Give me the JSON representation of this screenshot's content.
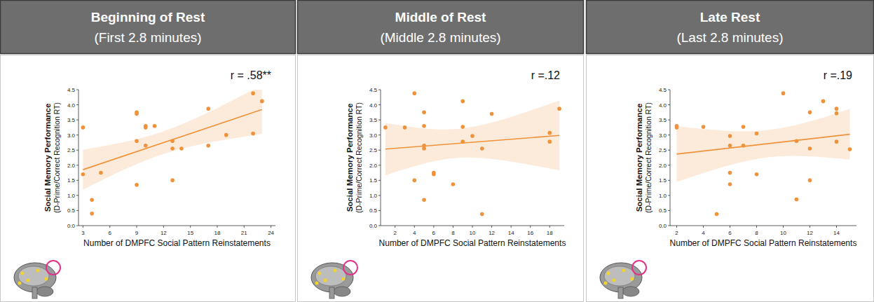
{
  "chart_data": [
    {
      "type": "scatter",
      "title": "Beginning of Rest",
      "subtitle": "(First 2.8 minutes)",
      "annotation": "r = .58**",
      "xlabel": "Number of DMPFC Social Pattern Reinstatements",
      "ylabel": [
        "Social Memory Performance",
        "(D-Prime/Correct Recognition RT)"
      ],
      "x": [
        3,
        3,
        4,
        4,
        5,
        9,
        9,
        9,
        9,
        10,
        10,
        10,
        11,
        13,
        13,
        13,
        14,
        17,
        17,
        19,
        22,
        22,
        23
      ],
      "values": [
        3.25,
        1.7,
        0.85,
        0.4,
        1.75,
        3.75,
        3.7,
        2.8,
        1.35,
        3.3,
        3.25,
        2.65,
        3.3,
        2.8,
        2.55,
        1.5,
        2.55,
        3.87,
        2.65,
        3.0,
        4.38,
        3.05,
        4.12
      ],
      "color": "#f0923a",
      "marker": "circle",
      "xlim": [
        2.5,
        24.5
      ],
      "xticks": [
        3,
        6,
        9,
        12,
        15,
        18,
        21,
        24
      ],
      "ylim": [
        0,
        4.5
      ],
      "yticks": [
        {
          "value": 0,
          "label": "0.0"
        },
        {
          "value": 0.5,
          "label": "0.5"
        },
        {
          "value": 1,
          "label": "1.0"
        },
        {
          "value": 1.5,
          "label": "1.5"
        },
        {
          "value": 2,
          "label": "2.0"
        },
        {
          "value": 2.5,
          "label": "2.5"
        },
        {
          "value": 3,
          "label": "3.0"
        },
        {
          "value": 3.5,
          "label": "3.5"
        },
        {
          "value": 4,
          "label": "4.0"
        },
        {
          "value": 4.5,
          "label": "4.5"
        }
      ]
    },
    {
      "type": "scatter",
      "title": "Middle of Rest",
      "subtitle": "(Middle 2.8 minutes)",
      "annotation": "r =.12",
      "xlabel": "Number of DMPFC Social Pattern Reinstatements",
      "ylabel": [
        "Social Memory Performance",
        "(D-Prime/Correct Recognition RT)"
      ],
      "x": [
        1,
        3,
        4,
        4,
        5,
        5,
        5,
        5,
        5,
        6,
        6,
        8,
        9,
        9,
        9,
        10,
        11,
        11,
        12,
        18,
        18,
        19
      ],
      "values": [
        3.25,
        3.25,
        4.38,
        1.5,
        3.75,
        3.3,
        2.65,
        2.55,
        0.85,
        1.75,
        1.7,
        1.37,
        4.12,
        3.27,
        2.78,
        2.97,
        2.55,
        0.38,
        3.7,
        3.07,
        2.78,
        3.87
      ],
      "color": "#f0923a",
      "marker": "circle",
      "xlim": [
        0.5,
        19.5
      ],
      "xticks": [
        2,
        4,
        6,
        8,
        10,
        12,
        14,
        16,
        18
      ],
      "ylim": [
        0,
        4.5
      ],
      "yticks": [
        {
          "value": 0,
          "label": "0.0"
        },
        {
          "value": 0.5,
          "label": "0.5"
        },
        {
          "value": 1,
          "label": "1.0"
        },
        {
          "value": 1.5,
          "label": "1.5"
        },
        {
          "value": 2,
          "label": "2.0"
        },
        {
          "value": 2.5,
          "label": "2.5"
        },
        {
          "value": 3,
          "label": "3.0"
        },
        {
          "value": 3.5,
          "label": "3.5"
        },
        {
          "value": 4,
          "label": "4.0"
        },
        {
          "value": 4.5,
          "label": "4.5"
        }
      ]
    },
    {
      "type": "scatter",
      "title": "Late Rest",
      "subtitle": "(Last 2.8 minutes)",
      "annotation": "r =.19",
      "xlabel": "Number of DMPFC Social Pattern Reinstatements",
      "ylabel": [
        "Social Memory Performance",
        "(D-Prime/Correct Recognition RT)"
      ],
      "x": [
        2,
        2,
        4,
        5,
        6,
        6,
        6,
        6,
        7,
        7,
        8,
        8,
        10,
        11,
        11,
        12,
        12,
        12,
        13,
        14,
        14,
        14,
        15
      ],
      "values": [
        3.3,
        3.25,
        3.27,
        0.38,
        2.97,
        2.65,
        1.75,
        1.37,
        3.27,
        2.65,
        3.05,
        1.7,
        4.38,
        2.8,
        0.87,
        3.75,
        2.55,
        1.5,
        4.12,
        3.87,
        3.72,
        2.78,
        2.53
      ],
      "color": "#f0923a",
      "marker": "circle",
      "xlim": [
        1.5,
        15.5
      ],
      "xticks": [
        2,
        4,
        6,
        8,
        10,
        12,
        14
      ],
      "ylim": [
        0,
        4.5
      ],
      "yticks": [
        {
          "value": 0,
          "label": "0.0"
        },
        {
          "value": 0.5,
          "label": "0.5"
        },
        {
          "value": 1,
          "label": "1.0"
        },
        {
          "value": 1.5,
          "label": "1.5"
        },
        {
          "value": 2,
          "label": "2.0"
        },
        {
          "value": 2.5,
          "label": "2.5"
        },
        {
          "value": 3,
          "label": "3.0"
        },
        {
          "value": 3.5,
          "label": "3.5"
        },
        {
          "value": 4,
          "label": "4.0"
        },
        {
          "value": 4.5,
          "label": "4.5"
        }
      ]
    }
  ]
}
